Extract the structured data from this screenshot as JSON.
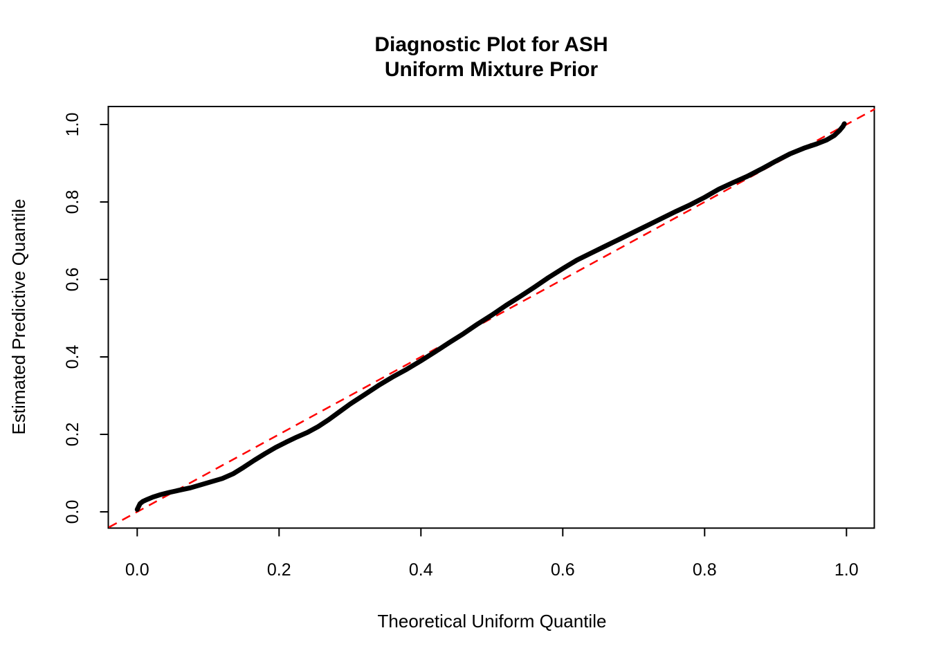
{
  "figure": {
    "title_line1": "Diagnostic Plot for ASH",
    "title_line2": "Uniform Mixture Prior",
    "xlabel": "Theoretical Uniform Quantile",
    "ylabel": "Estimated Predictive Quantile"
  },
  "chart_data": {
    "type": "line",
    "title": "Diagnostic Plot for ASH\nUniform Mixture Prior",
    "xlabel": "Theoretical Uniform Quantile",
    "ylabel": "Estimated Predictive Quantile",
    "xlim": [
      -0.04,
      1.04
    ],
    "ylim": [
      -0.04,
      1.04
    ],
    "grid": false,
    "legend": "none",
    "background_color": "#FFFFFF",
    "axis_color": "#000000",
    "x_ticks": [
      0.0,
      0.2,
      0.4,
      0.6,
      0.8,
      1.0
    ],
    "y_ticks": [
      0.0,
      0.2,
      0.4,
      0.6,
      0.8,
      1.0
    ],
    "x_tick_labels": [
      "0.0",
      "0.2",
      "0.4",
      "0.6",
      "0.8",
      "1.0"
    ],
    "y_tick_labels": [
      "0.0",
      "0.2",
      "0.4",
      "0.6",
      "0.8",
      "1.0"
    ],
    "reference_line": {
      "name": "identity-line-y-equals-x",
      "slope": 1,
      "intercept": 0,
      "color": "#FF0000",
      "style": "dashed",
      "width": 2.5
    },
    "series": [
      {
        "name": "estimated-predictive-quantile-curve",
        "color": "#000000",
        "width": 7,
        "points": [
          [
            0.0,
            0.006
          ],
          [
            0.002,
            0.014
          ],
          [
            0.004,
            0.021
          ],
          [
            0.008,
            0.027
          ],
          [
            0.014,
            0.032
          ],
          [
            0.022,
            0.038
          ],
          [
            0.032,
            0.044
          ],
          [
            0.045,
            0.05
          ],
          [
            0.06,
            0.056
          ],
          [
            0.075,
            0.062
          ],
          [
            0.09,
            0.07
          ],
          [
            0.105,
            0.078
          ],
          [
            0.12,
            0.086
          ],
          [
            0.135,
            0.098
          ],
          [
            0.15,
            0.115
          ],
          [
            0.165,
            0.133
          ],
          [
            0.18,
            0.15
          ],
          [
            0.195,
            0.166
          ],
          [
            0.21,
            0.18
          ],
          [
            0.225,
            0.193
          ],
          [
            0.24,
            0.205
          ],
          [
            0.255,
            0.22
          ],
          [
            0.27,
            0.238
          ],
          [
            0.285,
            0.258
          ],
          [
            0.3,
            0.278
          ],
          [
            0.32,
            0.302
          ],
          [
            0.34,
            0.326
          ],
          [
            0.36,
            0.348
          ],
          [
            0.38,
            0.368
          ],
          [
            0.4,
            0.39
          ],
          [
            0.42,
            0.413
          ],
          [
            0.44,
            0.437
          ],
          [
            0.46,
            0.46
          ],
          [
            0.48,
            0.485
          ],
          [
            0.5,
            0.508
          ],
          [
            0.52,
            0.533
          ],
          [
            0.54,
            0.556
          ],
          [
            0.56,
            0.58
          ],
          [
            0.58,
            0.605
          ],
          [
            0.6,
            0.628
          ],
          [
            0.62,
            0.65
          ],
          [
            0.64,
            0.668
          ],
          [
            0.66,
            0.686
          ],
          [
            0.68,
            0.704
          ],
          [
            0.7,
            0.722
          ],
          [
            0.72,
            0.74
          ],
          [
            0.74,
            0.758
          ],
          [
            0.76,
            0.776
          ],
          [
            0.78,
            0.793
          ],
          [
            0.8,
            0.812
          ],
          [
            0.82,
            0.833
          ],
          [
            0.84,
            0.85
          ],
          [
            0.86,
            0.866
          ],
          [
            0.88,
            0.885
          ],
          [
            0.9,
            0.905
          ],
          [
            0.92,
            0.924
          ],
          [
            0.94,
            0.939
          ],
          [
            0.958,
            0.95
          ],
          [
            0.972,
            0.96
          ],
          [
            0.983,
            0.972
          ],
          [
            0.99,
            0.984
          ],
          [
            0.995,
            0.995
          ],
          [
            0.997,
            1.002
          ]
        ]
      }
    ]
  }
}
